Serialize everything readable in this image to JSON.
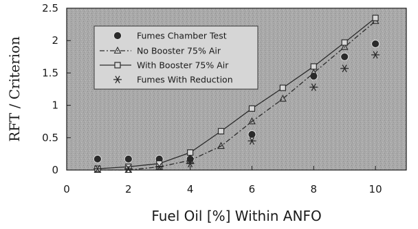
{
  "chart_data": {
    "type": "line",
    "xlabel": "Fuel Oil [%] Within ANFO",
    "ylabel": "RFT / Criterion",
    "xlim": [
      0,
      11
    ],
    "ylim": [
      0,
      2.5
    ],
    "x_ticks": [
      "0",
      "2",
      "4",
      "6",
      "8",
      "10"
    ],
    "y_ticks": [
      "0",
      "0.5",
      "1",
      "1.5",
      "2",
      "2.5"
    ],
    "grid": false,
    "legend_position": "upper-left",
    "series": [
      {
        "name": "Fumes Chamber Test",
        "marker": "filled-circle",
        "line": "none",
        "color": "#2a2a2a",
        "x": [
          1,
          2,
          3,
          4,
          6,
          8,
          9,
          10
        ],
        "y": [
          0.17,
          0.17,
          0.17,
          0.17,
          0.55,
          1.45,
          1.75,
          1.95
        ]
      },
      {
        "name": "No Booster 75% Air",
        "marker": "open-triangle",
        "line": "dash-dot",
        "color": "#2a2a2a",
        "x": [
          1,
          2,
          3,
          4,
          5,
          6,
          7,
          8,
          9,
          10
        ],
        "y": [
          0.0,
          0.0,
          0.05,
          0.15,
          0.37,
          0.75,
          1.1,
          1.5,
          1.9,
          2.3
        ]
      },
      {
        "name": "With Booster 75% Air",
        "marker": "open-square",
        "line": "solid",
        "color": "#2a2a2a",
        "x": [
          1,
          2,
          3,
          4,
          5,
          6,
          7,
          8,
          9,
          10
        ],
        "y": [
          0.02,
          0.05,
          0.1,
          0.27,
          0.6,
          0.95,
          1.27,
          1.6,
          1.97,
          2.35
        ]
      },
      {
        "name": "Fumes With Reduction",
        "marker": "asterisk",
        "line": "none",
        "color": "#2a2a2a",
        "x": [
          1,
          2,
          3,
          4,
          6,
          8,
          9,
          10
        ],
        "y": [
          0.02,
          0.02,
          0.05,
          0.1,
          0.45,
          1.28,
          1.57,
          1.78
        ]
      }
    ]
  }
}
